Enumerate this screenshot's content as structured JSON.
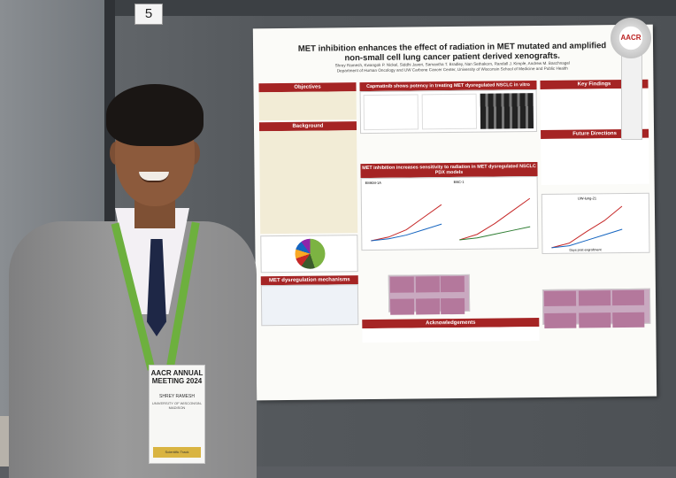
{
  "scene": {
    "board_number": "5"
  },
  "poster": {
    "title": "MET inhibition enhances the effect of radiation in MET mutated and amplified non-small cell lung cancer patient derived xenografts.",
    "authors": "Shrey Ramesh, Kwangok P. Nickel, Siddhi Javeri, Samantha T. Bradley, Nan Sethakorn, Randall J. Kimple, Andrew M. Baschnagel",
    "affiliation": "Department of Human Oncology and UW Carbone Cancer Center, University of Wisconsin School of Medicine and Public Health",
    "sections": {
      "objectives": "Objectives",
      "background": "Background",
      "met_mechanisms": "MET dysregulation mechanisms",
      "capmatinib": "Capmatinib shows potency in treating MET dysregulated NSCLC in vitro",
      "radiation": "MET inhibition increases sensitivity to radiation in MET dysregulated NSCLC PDX models",
      "key_findings": "Key Findings",
      "future": "Future Directions",
      "acknowledgements": "Acknowledgements"
    },
    "chart_labels": {
      "panel1": "EMKM-1A",
      "panel2": "EBC-1",
      "panel3": "UW-lung-21",
      "x_axis": "Days post engraftment"
    },
    "award_ribbon": "AACR"
  },
  "badge": {
    "header": "AACR ANNUAL MEETING 2024",
    "name": "SHREY RAMESH",
    "role": "UNIVERSITY OF WISCONSIN-MADISON",
    "footer": "Scientific Track"
  }
}
